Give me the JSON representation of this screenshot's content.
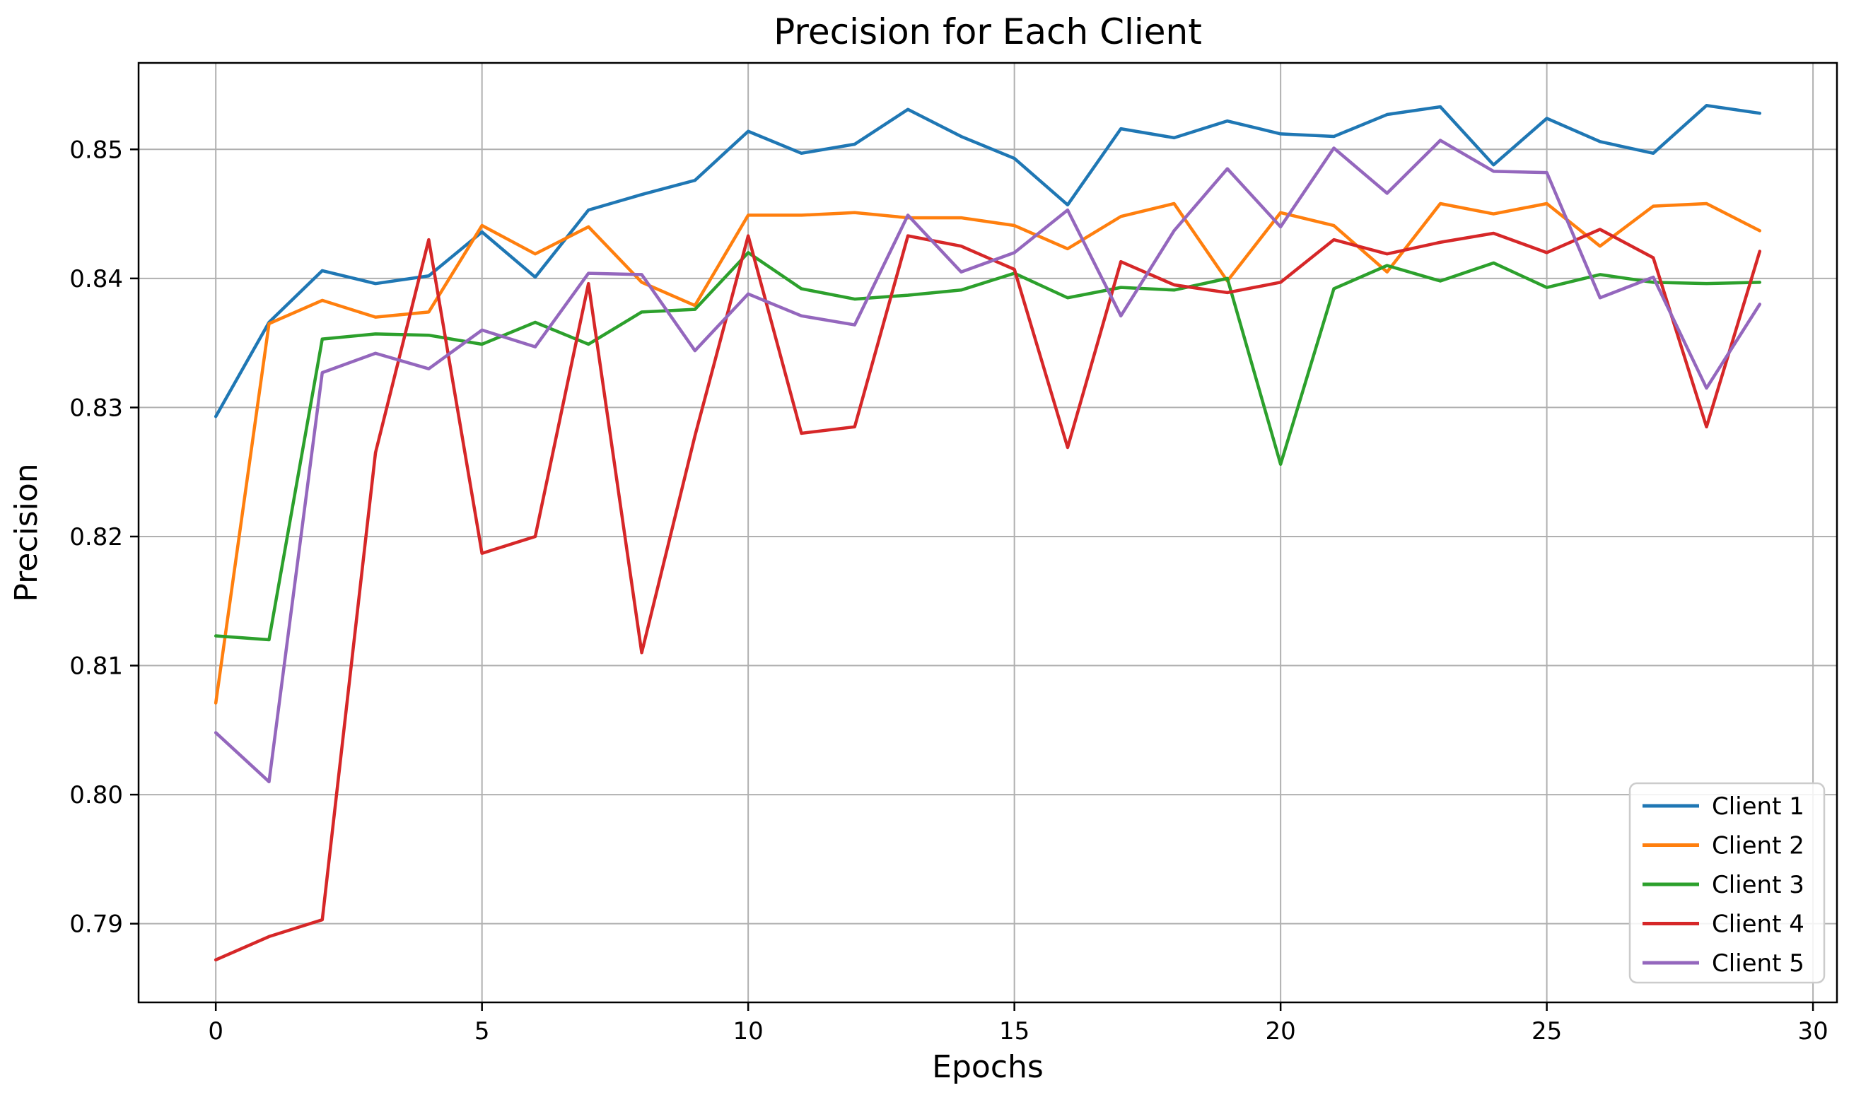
{
  "chart_data": {
    "type": "line",
    "title": "Precision for Each Client",
    "xlabel": "Epochs",
    "ylabel": "Precision",
    "x": [
      0,
      1,
      2,
      3,
      4,
      5,
      6,
      7,
      8,
      9,
      10,
      11,
      12,
      13,
      14,
      15,
      16,
      17,
      18,
      19,
      20,
      21,
      22,
      23,
      24,
      25,
      26,
      27,
      28,
      29
    ],
    "series": [
      {
        "name": "Client 1",
        "color": "#1f77b4",
        "values": [
          0.8293,
          0.8366,
          0.8406,
          0.8396,
          0.8402,
          0.8436,
          0.8401,
          0.8453,
          0.8465,
          0.8476,
          0.8514,
          0.8497,
          0.8504,
          0.8531,
          0.851,
          0.8493,
          0.8457,
          0.8516,
          0.8509,
          0.8522,
          0.8512,
          0.851,
          0.8527,
          0.8533,
          0.8488,
          0.8524,
          0.8506,
          0.8497,
          0.8534,
          0.8528
        ]
      },
      {
        "name": "Client 2",
        "color": "#ff7f0e",
        "values": [
          0.8071,
          0.8365,
          0.8383,
          0.837,
          0.8374,
          0.8441,
          0.8419,
          0.844,
          0.8397,
          0.8379,
          0.8449,
          0.8449,
          0.8451,
          0.8447,
          0.8447,
          0.8441,
          0.8423,
          0.8448,
          0.8458,
          0.8398,
          0.8451,
          0.8441,
          0.8405,
          0.8458,
          0.845,
          0.8458,
          0.8425,
          0.8456,
          0.8458,
          0.8437
        ]
      },
      {
        "name": "Client 3",
        "color": "#2ca02c",
        "values": [
          0.8123,
          0.812,
          0.8353,
          0.8357,
          0.8356,
          0.8349,
          0.8366,
          0.8349,
          0.8374,
          0.8376,
          0.842,
          0.8392,
          0.8384,
          0.8387,
          0.8391,
          0.8404,
          0.8385,
          0.8393,
          0.8391,
          0.84,
          0.8256,
          0.8392,
          0.841,
          0.8398,
          0.8412,
          0.8393,
          0.8403,
          0.8397,
          0.8396,
          0.8397
        ]
      },
      {
        "name": "Client 4",
        "color": "#d62728",
        "values": [
          0.7872,
          0.789,
          0.7903,
          0.8265,
          0.843,
          0.8187,
          0.82,
          0.8396,
          0.811,
          0.8278,
          0.8433,
          0.828,
          0.8285,
          0.8433,
          0.8425,
          0.8407,
          0.8269,
          0.8413,
          0.8395,
          0.8389,
          0.8397,
          0.843,
          0.8419,
          0.8428,
          0.8435,
          0.842,
          0.8438,
          0.8416,
          0.8285,
          0.8421
        ]
      },
      {
        "name": "Client 5",
        "color": "#9467bd",
        "values": [
          0.8048,
          0.801,
          0.8327,
          0.8342,
          0.833,
          0.836,
          0.8347,
          0.8404,
          0.8403,
          0.8344,
          0.8388,
          0.8371,
          0.8364,
          0.8449,
          0.8405,
          0.842,
          0.8453,
          0.8371,
          0.8437,
          0.8485,
          0.844,
          0.8501,
          0.8466,
          0.8507,
          0.8483,
          0.8482,
          0.8385,
          0.8401,
          0.8315,
          0.838
        ]
      }
    ],
    "xticks": [
      0,
      5,
      10,
      15,
      20,
      25,
      30
    ],
    "yticks": [
      0.79,
      0.8,
      0.81,
      0.82,
      0.83,
      0.84,
      0.85
    ],
    "xlim": [
      -1.45,
      30.45
    ],
    "ylim": [
      0.7839,
      0.8567
    ],
    "grid": true,
    "grid_color": "#b0b0b0",
    "spine_color": "#000000",
    "legend_position": "lower right",
    "legend_border_color": "#cccccc",
    "legend_background": "rgba(255,255,255,0.85)"
  }
}
